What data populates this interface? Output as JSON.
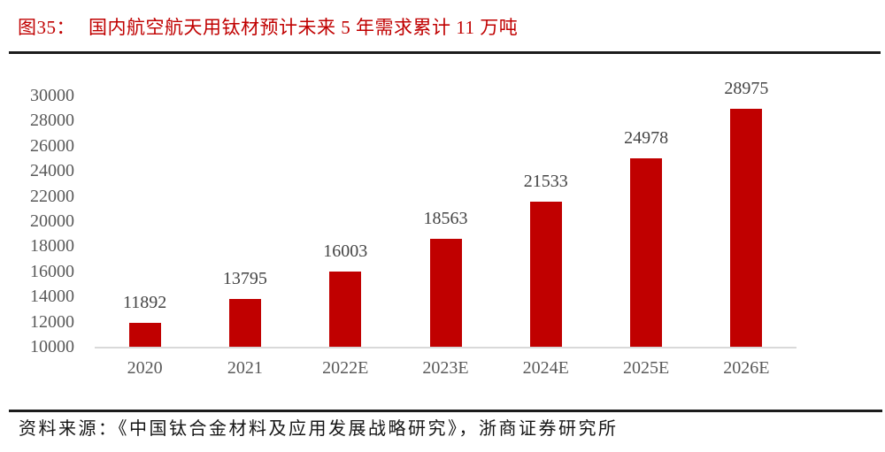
{
  "figure": {
    "number_label": "图35：",
    "title": "国内航空航天用钛材预计未来 5 年需求累计 11 万吨"
  },
  "source_note": "资料来源：《中国钛合金材料及应用发展战略研究》，浙商证券研究所",
  "colors": {
    "accent_red": "#c00000",
    "title_red": "#c00000",
    "tick_gray": "#595959",
    "data_label_gray": "#444444",
    "axis_line_gray": "#d9d9d9",
    "rule_black": "#1c1c1c",
    "source_black": "#151515"
  },
  "chart_data": {
    "type": "bar",
    "title": "国内航空航天用钛材预计未来 5 年需求累计 11 万吨",
    "categories": [
      "2020",
      "2021",
      "2022E",
      "2023E",
      "2024E",
      "2025E",
      "2026E"
    ],
    "values": [
      11892,
      13795,
      16003,
      18563,
      21533,
      24978,
      28975
    ],
    "xlabel": "",
    "ylabel": "",
    "ylim": [
      10000,
      30000
    ],
    "ytick_step": 2000,
    "yticks": [
      10000,
      12000,
      14000,
      16000,
      18000,
      20000,
      22000,
      24000,
      26000,
      28000,
      30000
    ],
    "grid": false,
    "legend": "none",
    "bar_color": "#c00000",
    "data_labels": "outside-end"
  }
}
